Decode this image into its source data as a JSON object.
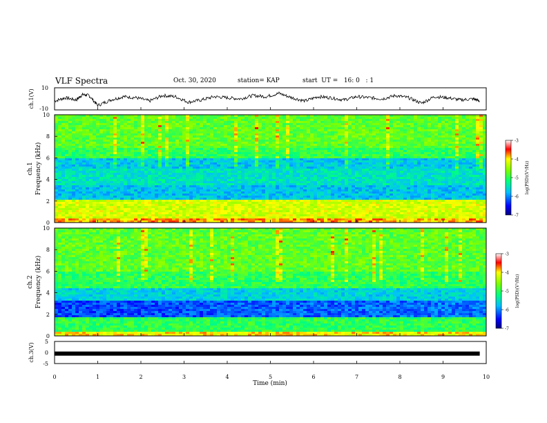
{
  "header": {
    "title": "VLF Spectra",
    "date": "Oct. 30, 2020",
    "station": "station= KAP",
    "start": "start  UT =   16: 0   : 1"
  },
  "colors": {
    "frame": "#000000",
    "background": "#ffffff"
  },
  "chart_data": [
    {
      "type": "line",
      "title": "",
      "ylabel": "ch.1(V)",
      "ylim": [
        -10,
        10
      ],
      "yticks": [
        "10",
        "-10"
      ],
      "xlim": [
        0,
        10
      ],
      "series": [
        {
          "x": [
            0,
            0.25,
            0.5,
            0.65,
            0.8,
            1.0,
            1.3,
            1.6,
            1.9,
            2.2,
            2.5,
            2.8,
            3.1,
            3.4,
            3.7,
            4.0,
            4.3,
            4.6,
            4.9,
            5.2,
            5.5,
            5.8,
            6.1,
            6.4,
            6.7,
            7.0,
            7.3,
            7.6,
            7.9,
            8.2,
            8.5,
            8.8,
            9.1,
            9.4,
            9.7,
            9.85
          ],
          "y": [
            -2,
            1,
            -1,
            4,
            3,
            -6,
            -1,
            2,
            1,
            -2,
            3,
            2,
            -3,
            -1,
            2,
            1,
            0,
            3,
            2,
            5,
            1,
            -2,
            2,
            1,
            -1,
            2,
            1,
            0,
            3,
            1,
            -4,
            2,
            1,
            -1,
            0,
            -2
          ]
        }
      ]
    },
    {
      "type": "heatmap",
      "title": "",
      "ylabel": "ch.1",
      "ylabel2": "Frequency  (kHz)",
      "ylim": [
        0,
        10
      ],
      "yticks": [
        "0",
        "2",
        "4",
        "6",
        "8",
        "10"
      ],
      "xlim": [
        0,
        10
      ],
      "colorbar": {
        "label": "log(PSD)(V²/Hz)",
        "range": [
          -7,
          -3
        ],
        "ticks": [
          "-3",
          "-4",
          "-5",
          "-6",
          "-7"
        ]
      }
    },
    {
      "type": "heatmap",
      "title": "",
      "ylabel": "ch.2",
      "ylabel2": "Frequency  (kHz)",
      "ylim": [
        0,
        10
      ],
      "yticks": [
        "0",
        "2",
        "4",
        "6",
        "8",
        "10"
      ],
      "xlim": [
        0,
        10
      ],
      "colorbar": {
        "label": "log(PSD)(V²/Hz)",
        "range": [
          -7,
          -3
        ],
        "ticks": [
          "-3",
          "-4",
          "-5",
          "-6",
          "-7"
        ]
      }
    },
    {
      "type": "line",
      "title": "",
      "ylabel": "ch.3(V)",
      "ylim": [
        -5,
        5
      ],
      "yticks": [
        "5",
        "0",
        "-5"
      ],
      "xlim": [
        0,
        10
      ],
      "xlabel": "Time  (min)",
      "xticks": [
        "0",
        "1",
        "2",
        "3",
        "4",
        "5",
        "6",
        "7",
        "8",
        "9",
        "10"
      ],
      "series": [
        {
          "x": [
            0,
            9.85
          ],
          "y": [
            -0.5,
            -0.5
          ]
        }
      ]
    }
  ]
}
